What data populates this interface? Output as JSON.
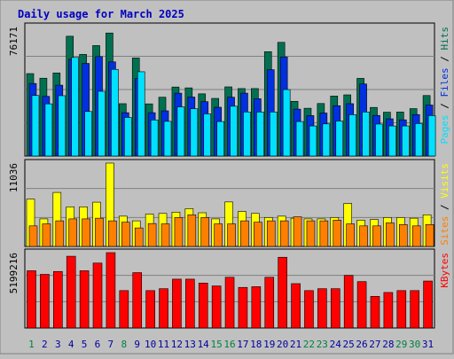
{
  "title": "Daily usage for March 2025",
  "colors": {
    "background": "#c0c0c0",
    "plot_bg": "#c0c0c0",
    "title": "#0000c0",
    "hits": "#007050",
    "files": "#0030e0",
    "pages": "#00e0ff",
    "visits": "#ffff00",
    "sites": "#ff8000",
    "kbytes": "#ff0000",
    "weekend_label": "#008040",
    "weekday_label": "#0000a0"
  },
  "chart_data": [
    {
      "type": "bar",
      "panel": "top",
      "y_max_label": "76171",
      "ylim": [
        0,
        76171
      ],
      "right_label": [
        {
          "text": "Pages",
          "color": "#00e0ff"
        },
        {
          "text": " / ",
          "color": "#000000"
        },
        {
          "text": "Files",
          "color": "#0030e0"
        },
        {
          "text": " / ",
          "color": "#000000"
        },
        {
          "text": "Hits",
          "color": "#007050"
        }
      ],
      "categories": [
        "1",
        "2",
        "3",
        "4",
        "5",
        "6",
        "7",
        "8",
        "9",
        "10",
        "11",
        "12",
        "13",
        "14",
        "15",
        "16",
        "17",
        "18",
        "19",
        "20",
        "21",
        "22",
        "23",
        "24",
        "25",
        "26",
        "27",
        "28",
        "29",
        "30",
        "31"
      ],
      "series": [
        {
          "name": "Hits",
          "values": [
            48500,
            45800,
            48900,
            70500,
            59800,
            65000,
            72400,
            30800,
            57700,
            30700,
            34600,
            40600,
            40100,
            36600,
            33900,
            40700,
            39700,
            39700,
            61400,
            66900,
            32200,
            28100,
            30900,
            35300,
            36000,
            45700,
            28600,
            25800,
            25900,
            27900,
            35600
          ]
        },
        {
          "name": "Files",
          "values": [
            42700,
            35100,
            41700,
            56900,
            54500,
            58500,
            55400,
            25500,
            45700,
            25500,
            26600,
            37000,
            34700,
            32000,
            28700,
            34600,
            37000,
            33700,
            50800,
            58300,
            27600,
            23800,
            25300,
            29600,
            30800,
            42400,
            23900,
            21900,
            21300,
            24400,
            30000
          ]
        },
        {
          "name": "Pages",
          "values": [
            35600,
            30700,
            35500,
            58000,
            26200,
            38100,
            51000,
            22700,
            49600,
            21200,
            20400,
            28900,
            27800,
            24800,
            20300,
            29300,
            25900,
            25900,
            25900,
            39100,
            20300,
            17700,
            18900,
            20600,
            24300,
            25900,
            18800,
            17700,
            17700,
            19100,
            23800
          ]
        }
      ],
      "weekend_days": [
        "1",
        "8",
        "15",
        "16",
        "22",
        "23",
        "29",
        "30"
      ]
    },
    {
      "type": "bar",
      "panel": "middle",
      "y_max_label": "11036",
      "ylim": [
        0,
        11036
      ],
      "right_label": [
        {
          "text": "Sites",
          "color": "#ff8000"
        },
        {
          "text": " / ",
          "color": "#000000"
        },
        {
          "text": "Visits",
          "color": "#ffff00"
        }
      ],
      "categories": [
        "1",
        "2",
        "3",
        "4",
        "5",
        "6",
        "7",
        "8",
        "9",
        "10",
        "11",
        "12",
        "13",
        "14",
        "15",
        "16",
        "17",
        "18",
        "19",
        "20",
        "21",
        "22",
        "23",
        "24",
        "25",
        "26",
        "27",
        "28",
        "29",
        "30",
        "31"
      ],
      "series": [
        {
          "name": "Visits",
          "values": [
            6270,
            3650,
            7150,
            5240,
            5240,
            5860,
            11036,
            4010,
            3390,
            4280,
            4370,
            4540,
            5000,
            4460,
            3650,
            5890,
            4630,
            4370,
            3830,
            4010,
            3740,
            3650,
            3650,
            3830,
            5690,
            3480,
            3570,
            3830,
            3830,
            3740,
            4190
          ]
        },
        {
          "name": "Sites",
          "values": [
            2720,
            2990,
            3390,
            3650,
            3650,
            3740,
            3390,
            3210,
            2450,
            3030,
            2990,
            3830,
            4190,
            3830,
            2990,
            2990,
            3390,
            3210,
            3390,
            3390,
            3920,
            3390,
            3390,
            3480,
            2990,
            2720,
            2720,
            3120,
            2900,
            2720,
            2900
          ]
        }
      ]
    },
    {
      "type": "bar",
      "panel": "bottom",
      "y_max_label": "5199216",
      "ylim": [
        0,
        5199216
      ],
      "right_label": [
        {
          "text": "KBytes",
          "color": "#ff0000"
        }
      ],
      "categories": [
        "1",
        "2",
        "3",
        "4",
        "5",
        "6",
        "7",
        "8",
        "9",
        "10",
        "11",
        "12",
        "13",
        "14",
        "15",
        "16",
        "17",
        "18",
        "19",
        "20",
        "21",
        "22",
        "23",
        "24",
        "25",
        "26",
        "27",
        "28",
        "29",
        "30",
        "31"
      ],
      "series": [
        {
          "name": "KBytes",
          "values": [
            3950000,
            3700000,
            3900000,
            4950000,
            3950000,
            4480000,
            5199216,
            2580000,
            3820000,
            2580000,
            2710000,
            3370000,
            3370000,
            3100000,
            2900000,
            3500000,
            2800000,
            2850000,
            3500000,
            4880000,
            3060000,
            2580000,
            2710000,
            2710000,
            3630000,
            3200000,
            2180000,
            2450000,
            2580000,
            2580000,
            3240000
          ]
        }
      ]
    }
  ]
}
